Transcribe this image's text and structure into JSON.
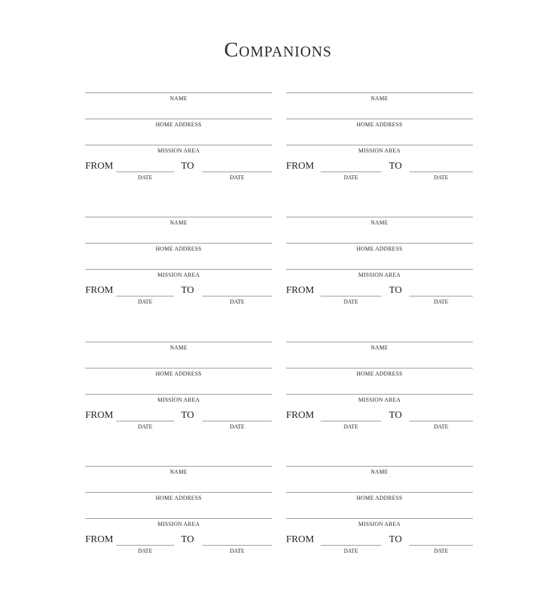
{
  "title": "Companions",
  "labels": {
    "name": "NAME",
    "home_address": "HOME ADDRESS",
    "mission_area": "MISSION AREA",
    "from": "FROM",
    "to": "TO",
    "date": "DATE"
  },
  "entries": [
    {
      "name": "",
      "home_address": "",
      "mission_area": "",
      "from_date": "",
      "to_date": ""
    },
    {
      "name": "",
      "home_address": "",
      "mission_area": "",
      "from_date": "",
      "to_date": ""
    },
    {
      "name": "",
      "home_address": "",
      "mission_area": "",
      "from_date": "",
      "to_date": ""
    },
    {
      "name": "",
      "home_address": "",
      "mission_area": "",
      "from_date": "",
      "to_date": ""
    },
    {
      "name": "",
      "home_address": "",
      "mission_area": "",
      "from_date": "",
      "to_date": ""
    },
    {
      "name": "",
      "home_address": "",
      "mission_area": "",
      "from_date": "",
      "to_date": ""
    },
    {
      "name": "",
      "home_address": "",
      "mission_area": "",
      "from_date": "",
      "to_date": ""
    },
    {
      "name": "",
      "home_address": "",
      "mission_area": "",
      "from_date": "",
      "to_date": ""
    }
  ]
}
